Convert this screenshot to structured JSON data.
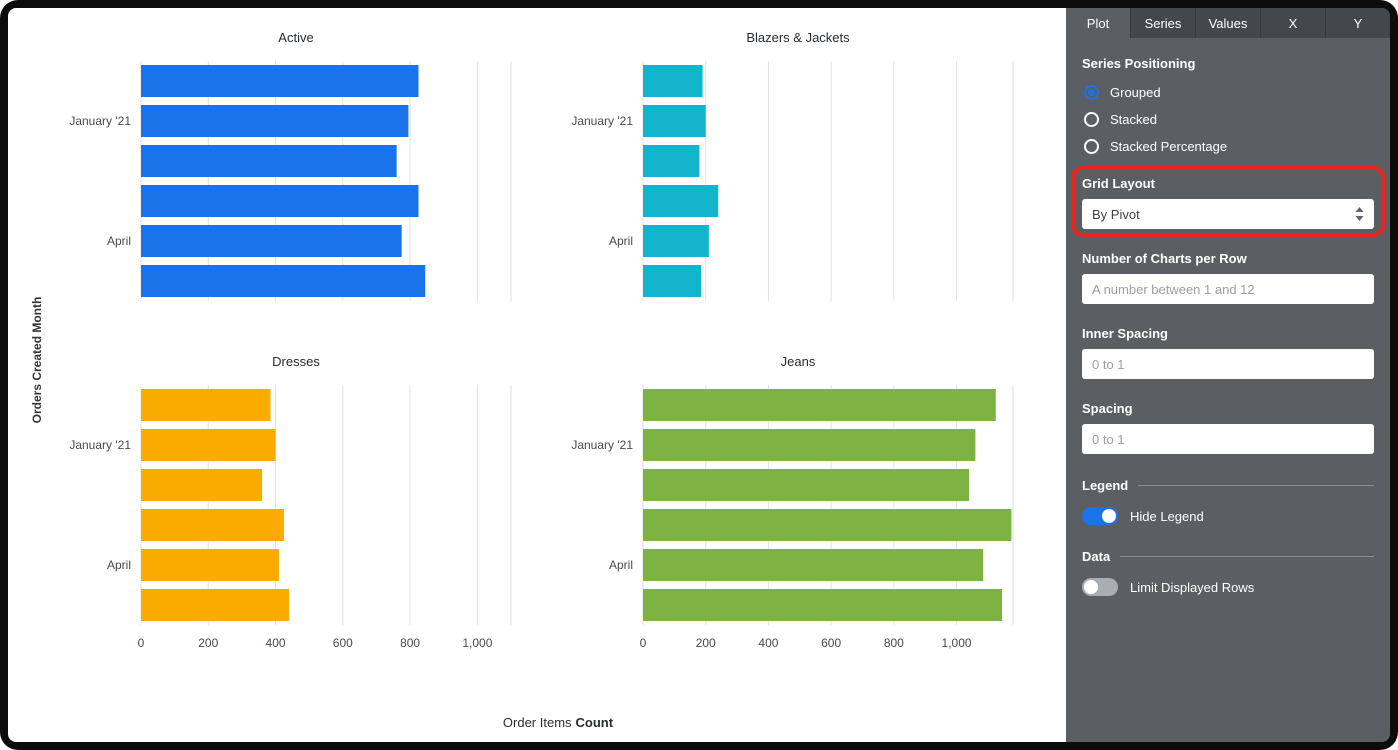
{
  "sidebar": {
    "tabs": [
      "Plot",
      "Series",
      "Values",
      "X",
      "Y"
    ],
    "active_tab": "Plot",
    "series_positioning_label": "Series Positioning",
    "series_positioning_options": [
      "Grouped",
      "Stacked",
      "Stacked Percentage"
    ],
    "series_positioning_selected": "Grouped",
    "grid_layout_label": "Grid Layout",
    "grid_layout_value": "By Pivot",
    "charts_per_row_label": "Number of Charts per Row",
    "charts_per_row_placeholder": "A number between 1 and 12",
    "inner_spacing_label": "Inner Spacing",
    "inner_spacing_placeholder": "0 to 1",
    "spacing_label": "Spacing",
    "spacing_placeholder": "0 to 1",
    "legend_label": "Legend",
    "hide_legend_label": "Hide Legend",
    "hide_legend_on": true,
    "data_label": "Data",
    "limit_rows_label": "Limit Displayed Rows",
    "limit_rows_on": false
  },
  "colors": {
    "accent_blue": "#1A73E8",
    "annotation_red": "#E8261F",
    "sidebar_bg": "#5B5F63",
    "tabbar_bg": "#44484B",
    "gridline": "#E2E2E2"
  },
  "chart_data": {
    "type": "bar",
    "orientation": "horizontal",
    "grid": true,
    "legend": "hidden",
    "x_axis_label": "Order Items Count",
    "x_axis_label_regular": "Order Items",
    "x_axis_label_bold": "Count",
    "y_axis_label": "Orders Created Month",
    "x_ticks": [
      0,
      200,
      400,
      600,
      800,
      1000
    ],
    "x_tick_labels": [
      "0",
      "200",
      "400",
      "600",
      "800",
      "1,000"
    ],
    "visible_y_tick_labels": {
      "1": "January '21",
      "4": "April"
    },
    "charts": [
      {
        "title": "Active",
        "color": "#1A73E8",
        "xlim": [
          0,
          1100
        ],
        "show_x_tick_labels": false,
        "values": [
          825,
          795,
          760,
          825,
          775,
          845
        ]
      },
      {
        "title": "Blazers & Jackets",
        "color": "#12B5CB",
        "xlim": [
          0,
          1180
        ],
        "show_x_tick_labels": false,
        "values": [
          190,
          200,
          180,
          240,
          210,
          185
        ]
      },
      {
        "title": "Dresses",
        "color": "#F9AB00",
        "xlim": [
          0,
          1100
        ],
        "show_x_tick_labels": true,
        "values": [
          385,
          400,
          360,
          425,
          410,
          440
        ]
      },
      {
        "title": "Jeans",
        "color": "#7CB342",
        "xlim": [
          0,
          1180
        ],
        "show_x_tick_labels": true,
        "values": [
          1125,
          1060,
          1040,
          1175,
          1085,
          1145
        ]
      }
    ]
  }
}
